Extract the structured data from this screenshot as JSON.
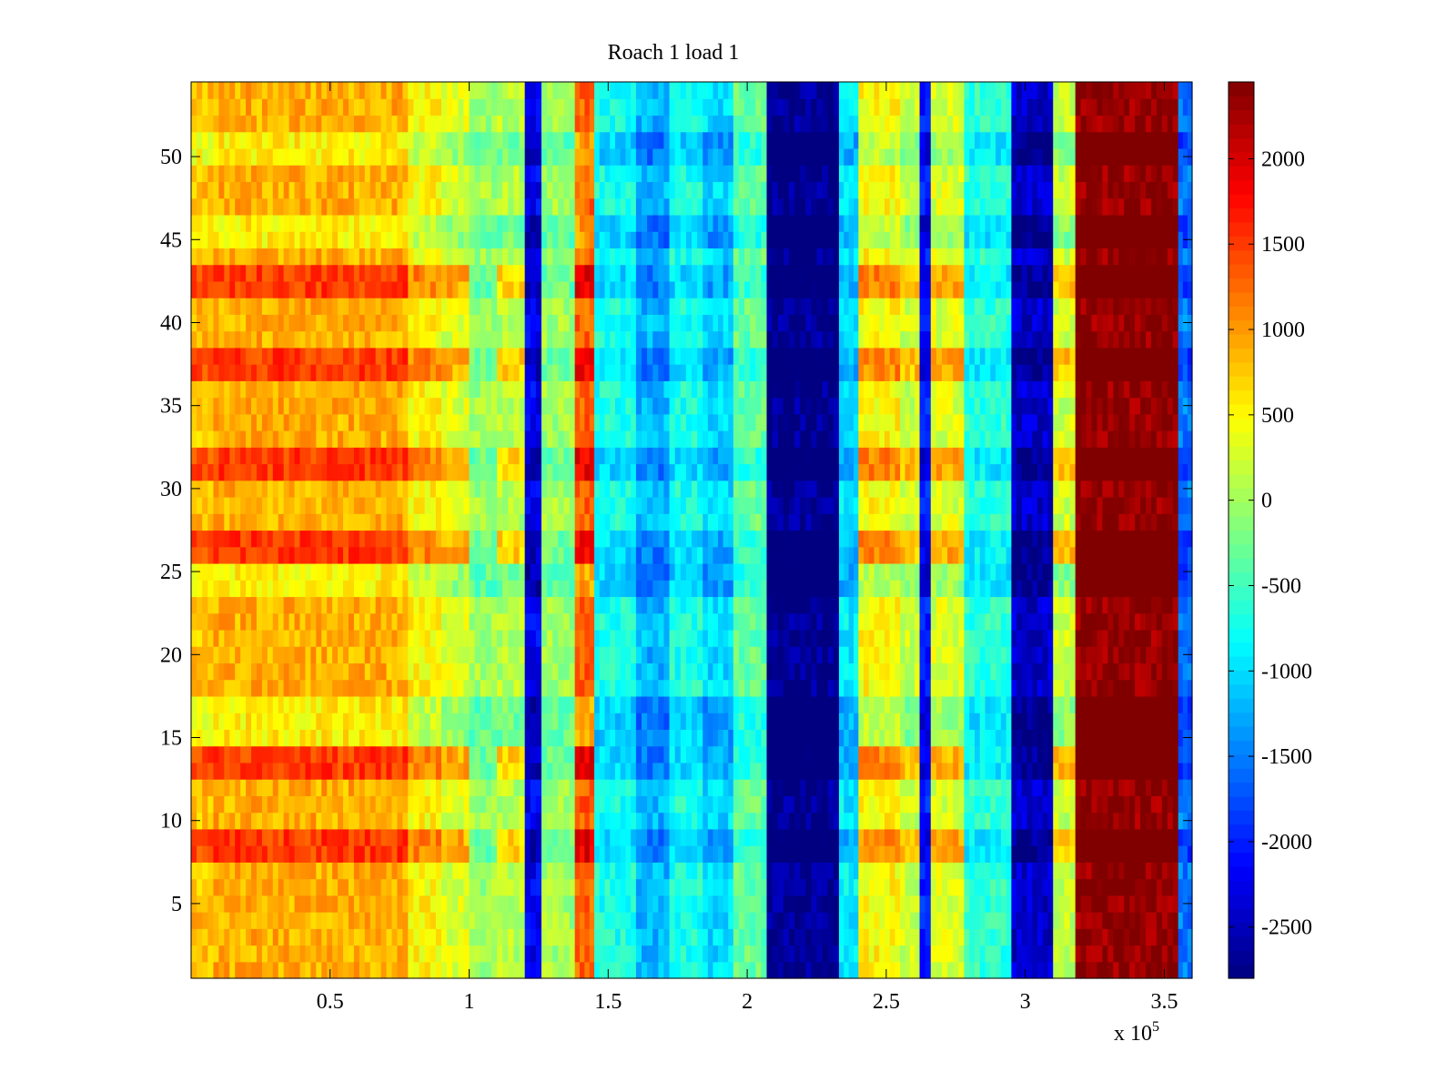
{
  "chart_data": {
    "type": "heatmap",
    "title": "Roach 1 load 1",
    "xlabel": "",
    "ylabel": "",
    "x_multiplier_label": "x 10",
    "x_multiplier_exponent": "5",
    "xlim": [
      0,
      3.6
    ],
    "ylim": [
      0.5,
      54.5
    ],
    "x_ticks": [
      0.5,
      1,
      1.5,
      2,
      2.5,
      3,
      3.5
    ],
    "x_tick_labels": [
      "0.5",
      "1",
      "1.5",
      "2",
      "2.5",
      "3",
      "3.5"
    ],
    "y_ticks": [
      5,
      10,
      15,
      20,
      25,
      30,
      35,
      40,
      45,
      50
    ],
    "y_tick_labels": [
      "5",
      "10",
      "15",
      "20",
      "25",
      "30",
      "35",
      "40",
      "45",
      "50"
    ],
    "colorbar": {
      "colormap": "jet",
      "clim": [
        -2800,
        2450
      ],
      "ticks": [
        -2500,
        -2000,
        -1500,
        -1000,
        -500,
        0,
        500,
        1000,
        1500,
        2000
      ],
      "tick_labels": [
        "-2500",
        "-2000",
        "-1500",
        "-1000",
        "-500",
        "0",
        "500",
        "1000",
        "1500",
        "2000"
      ]
    },
    "rows": 54,
    "column_profile": [
      {
        "x_end": 0.08,
        "value": 800
      },
      {
        "x_end": 0.78,
        "value": 900
      },
      {
        "x_end": 0.9,
        "value": 500
      },
      {
        "x_end": 1.0,
        "value": 300
      },
      {
        "x_end": 1.1,
        "value": 0
      },
      {
        "x_end": 1.2,
        "value": 100
      },
      {
        "x_end": 1.26,
        "value": -2200
      },
      {
        "x_end": 1.38,
        "value": 0
      },
      {
        "x_end": 1.45,
        "value": 1300
      },
      {
        "x_end": 1.6,
        "value": -700
      },
      {
        "x_end": 1.72,
        "value": -1200
      },
      {
        "x_end": 1.84,
        "value": -700
      },
      {
        "x_end": 1.95,
        "value": -1000
      },
      {
        "x_end": 2.07,
        "value": -300
      },
      {
        "x_end": 2.33,
        "value": -2700
      },
      {
        "x_end": 2.4,
        "value": -900
      },
      {
        "x_end": 2.55,
        "value": 500
      },
      {
        "x_end": 2.62,
        "value": 200
      },
      {
        "x_end": 2.66,
        "value": -2000
      },
      {
        "x_end": 2.78,
        "value": 300
      },
      {
        "x_end": 2.95,
        "value": -600
      },
      {
        "x_end": 3.1,
        "value": -2400
      },
      {
        "x_end": 3.18,
        "value": 200
      },
      {
        "x_end": 3.55,
        "value": 2350
      },
      {
        "x_end": 3.6,
        "value": -1500
      }
    ],
    "row_modulation": {
      "strong_rows": [
        8,
        9,
        13,
        14,
        26,
        27,
        31,
        32,
        37,
        38,
        42,
        43
      ],
      "cool_rows": [
        15,
        16,
        17,
        24,
        25,
        45,
        46,
        50,
        51
      ]
    }
  }
}
